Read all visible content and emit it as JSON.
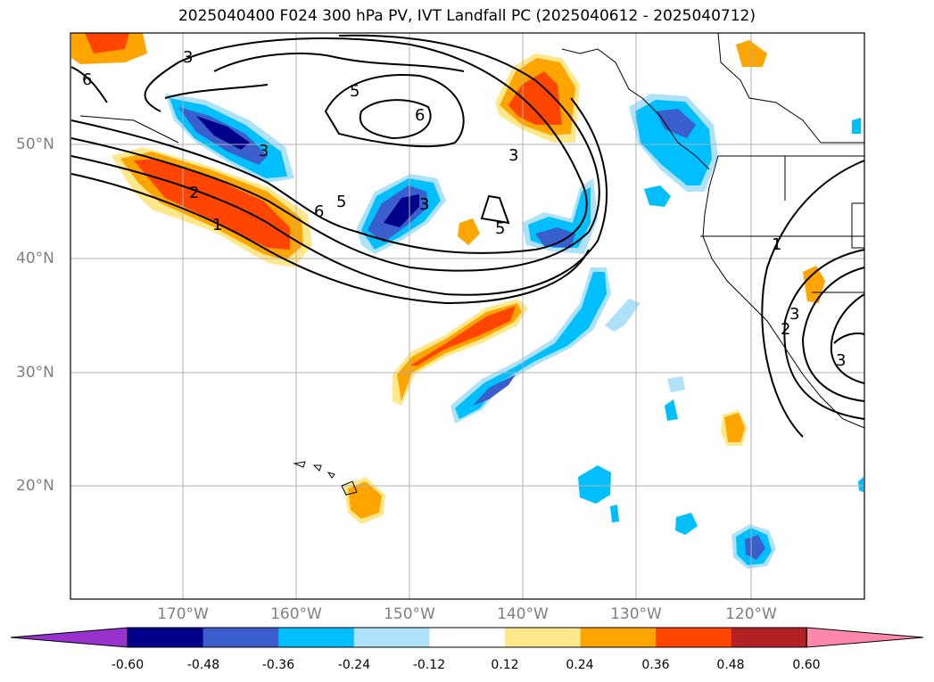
{
  "title": "2025040400 F024 300 hPa PV, IVT Landfall PC (2025040612 - 2025040712)",
  "map": {
    "projection": "PlateCarree",
    "lon_range": [
      -180,
      -110
    ],
    "lat_range": [
      10,
      60
    ],
    "lat_ticks": [
      {
        "value": 50,
        "label": "50°N"
      },
      {
        "value": 40,
        "label": "40°N"
      },
      {
        "value": 30,
        "label": "30°N"
      },
      {
        "value": 20,
        "label": "20°N"
      }
    ],
    "lon_ticks": [
      {
        "value": -170,
        "label": "170°W"
      },
      {
        "value": -160,
        "label": "160°W"
      },
      {
        "value": -150,
        "label": "150°W"
      },
      {
        "value": -140,
        "label": "140°W"
      },
      {
        "value": -130,
        "label": "130°W"
      },
      {
        "value": -120,
        "label": "120°W"
      }
    ],
    "contour_labels": [
      "6",
      "3",
      "5",
      "6",
      "3",
      "5",
      "6",
      "3",
      "2",
      "1",
      "3",
      "5",
      "1",
      "2",
      "3",
      "3"
    ]
  },
  "colorbar": {
    "extend": "both",
    "colors": [
      "#9932cc",
      "#00008b",
      "#3a5fcd",
      "#00bfff",
      "#aee2fa",
      "#ffffff",
      "#ffe88c",
      "#ffa500",
      "#ff4500",
      "#b22222",
      "#ff88aa"
    ],
    "tick_labels": [
      "-0.60",
      "-0.48",
      "-0.36",
      "-0.24",
      "-0.12",
      "0.12",
      "0.24",
      "0.36",
      "0.48",
      "0.60"
    ]
  }
}
